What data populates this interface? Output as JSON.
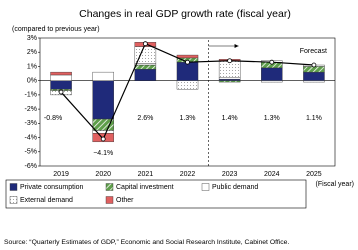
{
  "chart_data": {
    "type": "bar",
    "title": "Changes in real GDP growth rate (fiscal year)",
    "y_label": "(compared to previous year)",
    "x_label": "(Fiscal year)",
    "categories": [
      "2019",
      "2020",
      "2021",
      "2022",
      "2023",
      "2024",
      "2025"
    ],
    "series": [
      {
        "name": "Private consumption",
        "color": "#1f2a7a",
        "values": [
          -0.6,
          -2.7,
          0.8,
          1.3,
          0.1,
          0.9,
          0.6
        ]
      },
      {
        "name": "Capital investment",
        "color": "#5e9e4a",
        "values": [
          -0.1,
          -0.8,
          0.3,
          0.3,
          -0.1,
          0.4,
          0.4
        ]
      },
      {
        "name": "Public demand",
        "color": "#ffffff",
        "values": [
          0.4,
          0.6,
          0.1,
          0.0,
          0.1,
          0.1,
          0.1
        ]
      },
      {
        "name": "External demand",
        "color": "#ffffff",
        "values": [
          -0.3,
          -0.2,
          1.2,
          -0.6,
          1.2,
          -0.1,
          -0.1
        ]
      },
      {
        "name": "Other",
        "color": "#e06060",
        "values": [
          0.2,
          -0.6,
          0.3,
          0.2,
          0.1,
          0.0,
          0.0
        ]
      }
    ],
    "line": {
      "color": "#000000",
      "values": [
        -0.8,
        -4.1,
        2.6,
        1.3,
        1.4,
        1.3,
        1.1
      ],
      "value_labels": [
        "-0.8%",
        "−4.1%",
        "2.6%",
        "1.3%",
        "1.4%",
        "1.3%",
        "1.1%"
      ]
    },
    "annotation": "Forecast",
    "ylim": [
      -6,
      3
    ],
    "yticks": [
      {
        "value": -6,
        "label": "-6%"
      },
      {
        "value": -5,
        "label": "-5%"
      },
      {
        "value": -4,
        "label": "-4%"
      },
      {
        "value": -3,
        "label": "-3%"
      },
      {
        "value": -2,
        "label": "-2%"
      },
      {
        "value": -1,
        "label": "-1%"
      },
      {
        "value": 0,
        "label": "0%"
      },
      {
        "value": 1,
        "label": "1%"
      },
      {
        "value": 2,
        "label": "2%"
      },
      {
        "value": 3,
        "label": "3%"
      }
    ],
    "source": "Source: “Quarterly Estimates of GDP,” Economic and Social Research Institute, Cabinet Office."
  }
}
